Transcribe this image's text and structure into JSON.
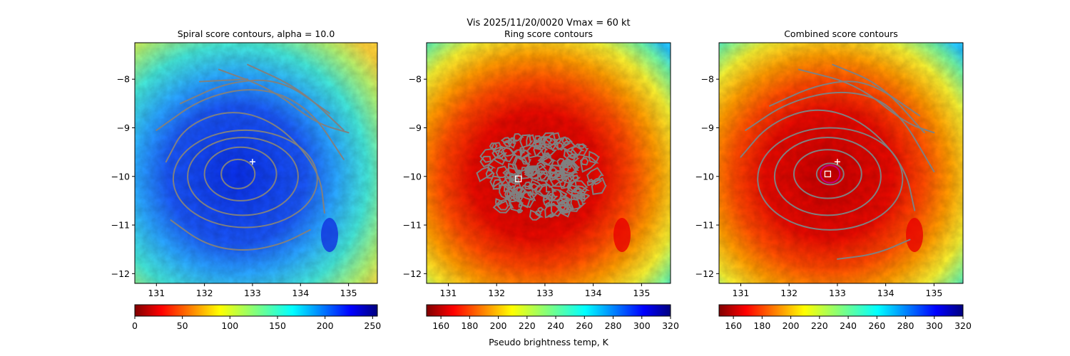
{
  "suptitle": "Vis  2025/11/20/0020    Vmax = 60 kt",
  "colorbar_label": "Pseudo brightness temp, K",
  "chart_data": [
    {
      "type": "heatmap",
      "title": "Spiral score contours, alpha = 10.0",
      "xlim": [
        130.55,
        135.6
      ],
      "ylim": [
        -12.2,
        -7.25
      ],
      "xticks": [
        131,
        132,
        133,
        134,
        135
      ],
      "xtick_labels": [
        "131",
        "132",
        "133",
        "134",
        "135"
      ],
      "yticks": [
        -8,
        -9,
        -10,
        -11,
        -12
      ],
      "ytick_labels": [
        "−8",
        "−9",
        "−10",
        "−11",
        "−12"
      ],
      "colormap": "jet_r",
      "colorbar": {
        "range": [
          0,
          255
        ],
        "ticks": [
          0,
          50,
          100,
          150,
          200,
          250
        ],
        "tick_labels": [
          "0",
          "50",
          "100",
          "150",
          "200",
          "250"
        ]
      },
      "center_marker": {
        "symbol": "plus",
        "color": "#ffffff",
        "lon": 133.0,
        "lat": -9.7
      },
      "contour_color": "#808080",
      "contours": [
        {
          "kind": "closed",
          "center": [
            132.7,
            -9.95
          ],
          "rx": 0.35,
          "ry": 0.3
        },
        {
          "kind": "closed",
          "center": [
            132.75,
            -9.95
          ],
          "rx": 0.75,
          "ry": 0.55
        },
        {
          "kind": "closed",
          "center": [
            132.8,
            -10.0
          ],
          "rx": 1.15,
          "ry": 0.8
        },
        {
          "kind": "closed",
          "center": [
            132.85,
            -10.05
          ],
          "rx": 1.5,
          "ry": 1.0
        },
        {
          "kind": "arc",
          "points": [
            [
              131.2,
              -9.7
            ],
            [
              131.6,
              -8.95
            ],
            [
              132.6,
              -8.6
            ],
            [
              133.6,
              -8.95
            ],
            [
              134.4,
              -9.9
            ],
            [
              134.5,
              -10.75
            ]
          ]
        },
        {
          "kind": "arc",
          "points": [
            [
              131.0,
              -9.05
            ],
            [
              132.0,
              -8.35
            ],
            [
              133.2,
              -8.15
            ],
            [
              134.2,
              -8.6
            ],
            [
              134.9,
              -9.65
            ]
          ]
        },
        {
          "kind": "arc",
          "points": [
            [
              131.5,
              -8.5
            ],
            [
              132.5,
              -8.05
            ],
            [
              133.6,
              -8.0
            ],
            [
              134.6,
              -8.7
            ]
          ]
        },
        {
          "kind": "arc",
          "points": [
            [
              131.9,
              -8.05
            ],
            [
              132.9,
              -8.0
            ]
          ]
        },
        {
          "kind": "arc",
          "points": [
            [
              132.3,
              -7.8
            ],
            [
              133.4,
              -8.2
            ],
            [
              134.3,
              -8.9
            ],
            [
              135.0,
              -9.1
            ]
          ]
        },
        {
          "kind": "arc",
          "points": [
            [
              132.9,
              -7.7
            ],
            [
              134.0,
              -8.2
            ],
            [
              134.9,
              -9.05
            ]
          ]
        },
        {
          "kind": "arc",
          "points": [
            [
              131.3,
              -10.9
            ],
            [
              132.0,
              -11.4
            ],
            [
              132.8,
              -11.55
            ],
            [
              133.6,
              -11.4
            ],
            [
              134.2,
              -11.1
            ]
          ]
        }
      ]
    },
    {
      "type": "heatmap",
      "title": "Ring score contours",
      "xlim": [
        130.55,
        135.6
      ],
      "ylim": [
        -12.2,
        -7.25
      ],
      "xticks": [
        131,
        132,
        133,
        134,
        135
      ],
      "xtick_labels": [
        "131",
        "132",
        "133",
        "134",
        "135"
      ],
      "yticks": [
        -8,
        -9,
        -10,
        -11,
        -12
      ],
      "ytick_labels": [
        "−8",
        "−9",
        "−10",
        "−11",
        "−12"
      ],
      "colormap": "jet_r",
      "colorbar": {
        "range": [
          150,
          320
        ],
        "ticks": [
          160,
          180,
          200,
          220,
          240,
          260,
          280,
          300,
          320
        ],
        "tick_labels": [
          "160",
          "180",
          "200",
          "220",
          "240",
          "260",
          "280",
          "300",
          "320"
        ]
      },
      "center_marker": {
        "symbol": "square",
        "color": "#ffffff",
        "lon": 132.45,
        "lat": -10.05
      },
      "contour_color": "#808080",
      "ring_region": {
        "center": [
          132.9,
          -9.95
        ],
        "rx": 1.25,
        "ry": 0.9
      }
    },
    {
      "type": "heatmap",
      "title": "Combined score contours",
      "xlim": [
        130.55,
        135.6
      ],
      "ylim": [
        -12.2,
        -7.25
      ],
      "xticks": [
        131,
        132,
        133,
        134,
        135
      ],
      "xtick_labels": [
        "131",
        "132",
        "133",
        "134",
        "135"
      ],
      "yticks": [
        -8,
        -9,
        -10,
        -11,
        -12
      ],
      "ytick_labels": [
        "−8",
        "−9",
        "−10",
        "−11",
        "−12"
      ],
      "colormap": "jet_r",
      "colorbar": {
        "range": [
          150,
          320
        ],
        "ticks": [
          160,
          180,
          200,
          220,
          240,
          260,
          280,
          300,
          320
        ],
        "tick_labels": [
          "160",
          "180",
          "200",
          "220",
          "240",
          "260",
          "280",
          "300",
          "320"
        ]
      },
      "center_marker": {
        "symbol": "plus",
        "color": "#ffffff",
        "lon": 133.0,
        "lat": -9.7
      },
      "square_marker": {
        "symbol": "square",
        "color": "#ffffff",
        "lon": 132.8,
        "lat": -9.95
      },
      "highlight_contour": {
        "color": "#c0007f",
        "center": [
          132.85,
          -9.95
        ],
        "rx": 0.2,
        "ry": 0.18
      },
      "contour_color": "#808080",
      "contours": [
        {
          "kind": "closed",
          "center": [
            132.85,
            -9.95
          ],
          "rx": 0.28,
          "ry": 0.22
        },
        {
          "kind": "closed",
          "center": [
            132.8,
            -9.95
          ],
          "rx": 0.7,
          "ry": 0.5
        },
        {
          "kind": "closed",
          "center": [
            132.8,
            -10.0
          ],
          "rx": 1.1,
          "ry": 0.8
        },
        {
          "kind": "closed",
          "center": [
            132.85,
            -10.05
          ],
          "rx": 1.5,
          "ry": 1.05
        },
        {
          "kind": "arc",
          "points": [
            [
              131.0,
              -9.6
            ],
            [
              131.6,
              -8.9
            ],
            [
              132.6,
              -8.55
            ],
            [
              133.6,
              -8.9
            ],
            [
              134.4,
              -9.8
            ],
            [
              134.6,
              -10.7
            ]
          ]
        },
        {
          "kind": "arc",
          "points": [
            [
              131.1,
              -9.05
            ],
            [
              132.0,
              -8.45
            ],
            [
              133.2,
              -8.2
            ],
            [
              134.2,
              -8.55
            ],
            [
              135.0,
              -9.9
            ]
          ]
        },
        {
          "kind": "arc",
          "points": [
            [
              131.6,
              -8.55
            ],
            [
              132.6,
              -8.1
            ],
            [
              133.6,
              -8.0
            ],
            [
              134.7,
              -8.75
            ]
          ]
        },
        {
          "kind": "arc",
          "points": [
            [
              132.2,
              -7.8
            ],
            [
              133.4,
              -8.1
            ],
            [
              134.4,
              -8.9
            ],
            [
              135.0,
              -9.1
            ]
          ]
        },
        {
          "kind": "arc",
          "points": [
            [
              132.9,
              -7.7
            ],
            [
              133.9,
              -8.1
            ],
            [
              134.8,
              -9.1
            ]
          ]
        },
        {
          "kind": "arc",
          "points": [
            [
              133.0,
              -11.7
            ],
            [
              133.8,
              -11.6
            ],
            [
              134.5,
              -11.3
            ]
          ]
        }
      ]
    }
  ]
}
